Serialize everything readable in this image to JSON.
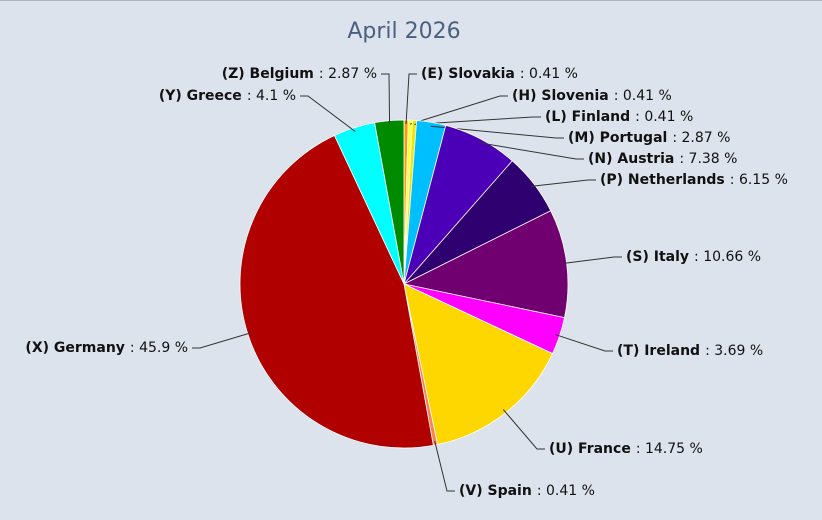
{
  "chart_data": {
    "type": "pie",
    "title": "April 2026",
    "categories": [
      "(E) Slovakia",
      "(H) Slovenia",
      "(L) Finland",
      "(M) Portugal",
      "(N) Austria",
      "(P) Netherlands",
      "(S) Italy",
      "(T) Ireland",
      "(U) France",
      "(V) Spain",
      "(X) Germany",
      "(Y) Greece",
      "(Z) Belgium"
    ],
    "values": [
      0.41,
      0.41,
      0.41,
      2.87,
      7.38,
      6.15,
      10.66,
      3.69,
      14.75,
      0.41,
      45.9,
      4.1,
      2.87
    ],
    "value_labels": [
      ": 0.41 %",
      ": 0.41 %",
      ": 0.41 %",
      ": 2.87 %",
      ": 7.38 %",
      ": 6.15 %",
      ": 10.66 %",
      ": 3.69 %",
      ": 14.75 %",
      ": 0.41 %",
      ": 45.9 %",
      ": 4.1 %",
      ": 2.87 %"
    ],
    "colors": [
      "#ff9900",
      "#ffff33",
      "#e8e800",
      "#00bfff",
      "#4b00b8",
      "#2e0070",
      "#700070",
      "#ff00ff",
      "#ffd700",
      "#ff7f50",
      "#b00000",
      "#00ffff",
      "#008a00"
    ]
  }
}
